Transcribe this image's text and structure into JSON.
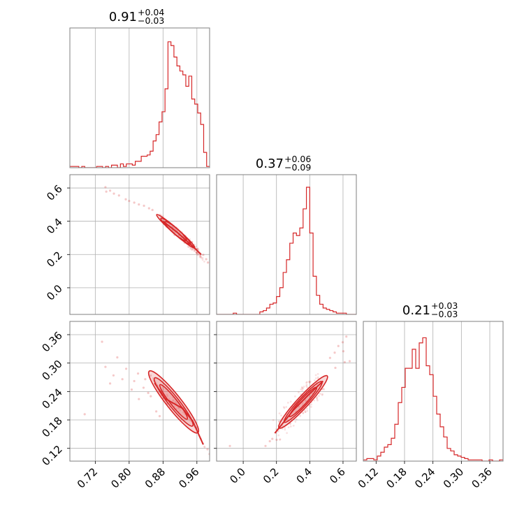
{
  "colors": {
    "series": "#d62728",
    "grid": "#b0b0b0",
    "frame": "#7f7f7f"
  },
  "chart_data": {
    "type": "corner",
    "title": "",
    "grid": true,
    "params": [
      {
        "median": "0.91",
        "err_plus": "+0.04",
        "err_minus": "−0.03",
        "range": [
          0.66,
          0.99
        ],
        "ticks": [
          0.72,
          0.8,
          0.88,
          0.96
        ],
        "tick_labels": [
          "0.72",
          "0.80",
          "0.88",
          "0.96"
        ]
      },
      {
        "median": "0.37",
        "err_plus": "+0.06",
        "err_minus": "−0.09",
        "range": [
          -0.16,
          0.68
        ],
        "ticks": [
          0.0,
          0.2,
          0.4,
          0.6
        ],
        "tick_labels": [
          "0.0",
          "0.2",
          "0.4",
          "0.6"
        ]
      },
      {
        "median": "0.21",
        "err_plus": "+0.03",
        "err_minus": "−0.03",
        "range": [
          0.093,
          0.388
        ],
        "ticks": [
          0.12,
          0.18,
          0.24,
          0.3,
          0.36
        ],
        "tick_labels": [
          "0.12",
          "0.18",
          "0.24",
          "0.30",
          "0.36"
        ]
      }
    ],
    "histograms": [
      {
        "param": 0,
        "counts": [
          0.01,
          0.01,
          0.01,
          0.0,
          0.01,
          0.0,
          0.0,
          0.0,
          0.0,
          0.01,
          0.01,
          0.0,
          0.01,
          0.0,
          0.02,
          0.02,
          0.0,
          0.03,
          0.01,
          0.03,
          0.03,
          0.02,
          0.05,
          0.05,
          0.09,
          0.09,
          0.1,
          0.13,
          0.21,
          0.26,
          0.36,
          0.44,
          0.62,
          0.99,
          0.96,
          0.87,
          0.8,
          0.76,
          0.73,
          0.64,
          0.72,
          0.54,
          0.5,
          0.43,
          0.34,
          0.12,
          0.01
        ],
        "bin_range": [
          0.66,
          0.99
        ]
      },
      {
        "param": 1,
        "counts": [
          0.0,
          0.0,
          0.0,
          0.0,
          0.0,
          0.01,
          0.0,
          0.0,
          0.0,
          0.0,
          0.0,
          0.0,
          0.0,
          0.02,
          0.03,
          0.05,
          0.08,
          0.09,
          0.14,
          0.21,
          0.33,
          0.43,
          0.56,
          0.64,
          0.62,
          0.68,
          0.83,
          1.0,
          0.64,
          0.3,
          0.15,
          0.08,
          0.05,
          0.04,
          0.03,
          0.02,
          0.01,
          0.01,
          0.01,
          0.0,
          0.0,
          0.0
        ],
        "bin_range": [
          -0.16,
          0.68
        ]
      },
      {
        "param": 2,
        "counts": [
          0.01,
          0.02,
          0.02,
          0.01,
          0.04,
          0.07,
          0.11,
          0.13,
          0.18,
          0.29,
          0.46,
          0.58,
          0.73,
          0.73,
          0.88,
          0.73,
          0.93,
          0.97,
          0.75,
          0.68,
          0.51,
          0.37,
          0.27,
          0.19,
          0.1,
          0.08,
          0.05,
          0.04,
          0.03,
          0.02,
          0.01,
          0.01,
          0.01,
          0.01,
          0.0,
          0.0,
          0.01,
          0.0,
          0.0,
          0.01
        ],
        "bin_range": [
          0.093,
          0.388
        ]
      }
    ],
    "pairs": [
      {
        "x_param": 0,
        "y_param": 1,
        "ridge": [
          [
            0.88,
            0.4
          ],
          [
            0.915,
            0.33
          ],
          [
            0.95,
            0.25
          ],
          [
            0.97,
            0.2
          ]
        ],
        "center": [
          0.91,
          0.34
        ],
        "contour_radii": [
          [
            0.055,
            0.019
          ],
          [
            0.042,
            0.014
          ],
          [
            0.03,
            0.01
          ]
        ],
        "scatter": [
          [
            0.744,
            0.605
          ],
          [
            0.746,
            0.578
          ],
          [
            0.755,
            0.584
          ],
          [
            0.764,
            0.566
          ],
          [
            0.776,
            0.555
          ],
          [
            0.792,
            0.532
          ],
          [
            0.8,
            0.522
          ],
          [
            0.812,
            0.512
          ],
          [
            0.823,
            0.501
          ],
          [
            0.835,
            0.493
          ],
          [
            0.847,
            0.478
          ],
          [
            0.855,
            0.468
          ],
          [
            0.982,
            0.172
          ],
          [
            0.986,
            0.152
          ],
          [
            0.975,
            0.198
          ]
        ]
      },
      {
        "x_param": 0,
        "y_param": 2,
        "ridge": [
          [
            0.86,
            0.258
          ],
          [
            0.885,
            0.225
          ],
          [
            0.925,
            0.205
          ],
          [
            0.95,
            0.178
          ],
          [
            0.975,
            0.128
          ]
        ],
        "center": [
          0.905,
          0.218
        ],
        "contour_radii": [
          [
            0.055,
            0.028
          ],
          [
            0.04,
            0.02
          ],
          [
            0.028,
            0.013
          ]
        ],
        "scatter": [
          [
            0.695,
            0.192
          ],
          [
            0.736,
            0.345
          ],
          [
            0.744,
            0.292
          ],
          [
            0.755,
            0.257
          ],
          [
            0.763,
            0.274
          ],
          [
            0.772,
            0.312
          ],
          [
            0.784,
            0.266
          ],
          [
            0.793,
            0.288
          ],
          [
            0.806,
            0.244
          ],
          [
            0.812,
            0.262
          ],
          [
            0.821,
            0.278
          ],
          [
            0.834,
            0.248
          ],
          [
            0.838,
            0.266
          ],
          [
            0.845,
            0.237
          ],
          [
            0.823,
            0.224
          ],
          [
            0.851,
            0.23
          ],
          [
            0.864,
            0.198
          ],
          [
            0.872,
            0.188
          ],
          [
            0.985,
            0.118
          ],
          [
            0.99,
            0.108
          ]
        ]
      },
      {
        "x_param": 1,
        "y_param": 2,
        "ridge": [
          [
            0.19,
            0.152
          ],
          [
            0.3,
            0.2
          ],
          [
            0.39,
            0.232
          ],
          [
            0.48,
            0.262
          ]
        ],
        "center": [
          0.36,
          0.218
        ],
        "contour_radii": [
          [
            0.15,
            0.022
          ],
          [
            0.11,
            0.016
          ],
          [
            0.075,
            0.011
          ]
        ],
        "scatter": [
          [
            -0.08,
            0.125
          ],
          [
            0.134,
            0.125
          ],
          [
            0.16,
            0.135
          ],
          [
            0.175,
            0.14
          ],
          [
            0.201,
            0.138
          ],
          [
            0.522,
            0.311
          ],
          [
            0.55,
            0.322
          ],
          [
            0.572,
            0.336
          ],
          [
            0.598,
            0.344
          ],
          [
            0.61,
            0.302
          ],
          [
            0.62,
            0.356
          ],
          [
            0.602,
            0.325
          ],
          [
            0.64,
            0.304
          ],
          [
            0.554,
            0.29
          ]
        ]
      }
    ]
  }
}
